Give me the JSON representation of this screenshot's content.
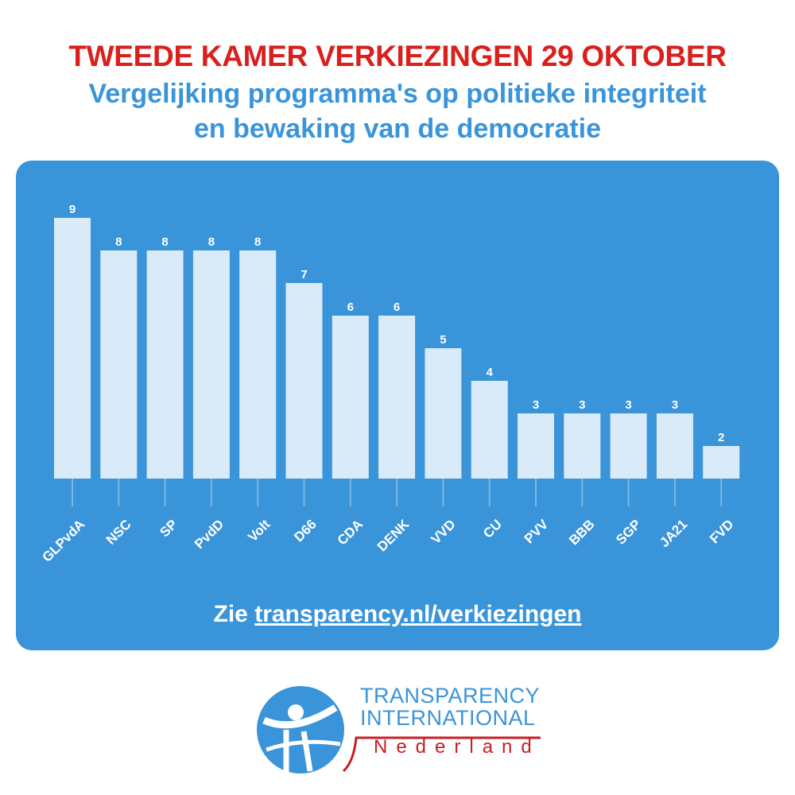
{
  "header": {
    "title": "TWEEDE KAMER VERKIEZINGEN 29 OKTOBER",
    "subtitle_line1": "Vergelijking programma's op politieke integriteit",
    "subtitle_line2": "en bewaking van de democratie"
  },
  "footer": {
    "prefix": "Zie",
    "link": "transparency.nl/verkiezingen"
  },
  "logo": {
    "line1": "TRANSPARENCY",
    "line2": "INTERNATIONAL",
    "line3": "Nederland"
  },
  "colors": {
    "title": "#d9201c",
    "accent": "#3a94d9",
    "bar": "#d9eaf8",
    "logo_red": "#c81e24"
  },
  "chart_data": {
    "type": "bar",
    "categories": [
      "GLPvdA",
      "NSC",
      "SP",
      "PvdD",
      "Volt",
      "D66",
      "CDA",
      "DENK",
      "VVD",
      "CU",
      "PVV",
      "BBB",
      "SGP",
      "JA21",
      "FVD"
    ],
    "values": [
      9,
      8,
      8,
      8,
      8,
      7,
      6,
      6,
      5,
      4,
      3,
      3,
      3,
      3,
      2
    ],
    "title": "",
    "xlabel": "",
    "ylabel": "",
    "ylim": [
      1,
      9
    ],
    "grid": false,
    "data_labels": true
  }
}
